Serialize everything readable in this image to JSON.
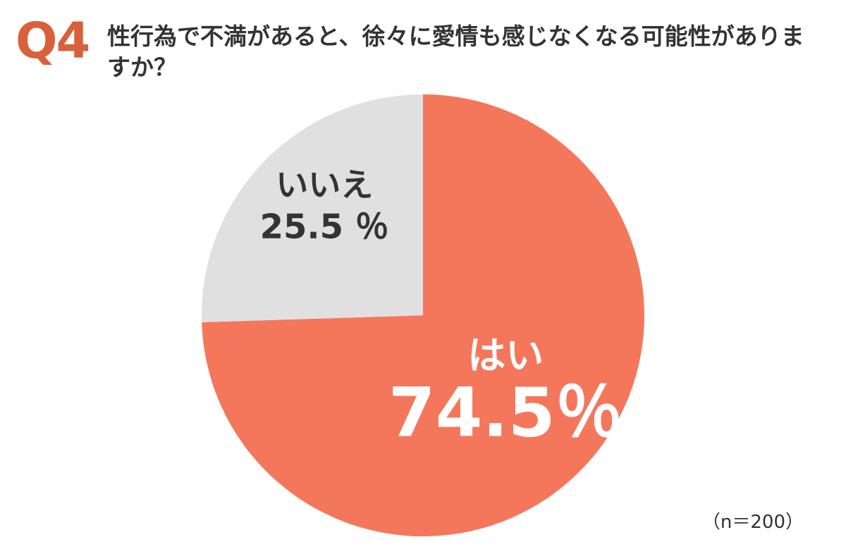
{
  "header": {
    "question_number": "Q4",
    "question_text": "性行為で不満があると、徐々に愛情も感じなくなる可能性がありますか？"
  },
  "footer": {
    "sample_size": "（n＝200）"
  },
  "colors": {
    "accent": "#d9603c",
    "yes": "#f4775b",
    "no": "#e0e0e0",
    "text": "#333333"
  },
  "chart_data": {
    "type": "pie",
    "title": "",
    "slices": [
      {
        "label": "はい",
        "value": 74.5,
        "display": "74.5％",
        "color": "#f4775b",
        "text_color": "#ffffff"
      },
      {
        "label": "いいえ",
        "value": 25.5,
        "display": "25.5 ％",
        "color": "#e0e0e0",
        "text_color": "#333333"
      }
    ],
    "start": "12 o'clock",
    "direction": "clockwise"
  }
}
